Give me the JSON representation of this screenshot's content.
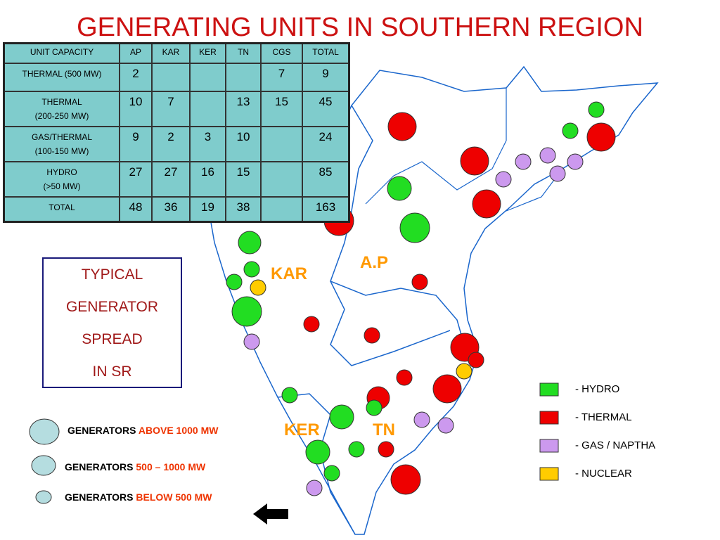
{
  "header": {
    "title": "GENERATING UNITS IN SOUTHERN REGION"
  },
  "table": {
    "columns": [
      "UNIT CAPACITY",
      "AP",
      "KAR",
      "KER",
      "TN",
      "CGS",
      "TOTAL"
    ],
    "rows": [
      {
        "label": [
          "THERMAL (500 MW)"
        ],
        "cells": [
          "2",
          null,
          null,
          null,
          "7",
          "9"
        ]
      },
      {
        "label": [
          "THERMAL",
          "(200-250 MW)"
        ],
        "cells": [
          "10",
          "7",
          null,
          "13",
          "15",
          "45"
        ]
      },
      {
        "label": [
          "GAS/THERMAL",
          "(100-150 MW)"
        ],
        "cells": [
          "9",
          "2",
          "3",
          "10",
          null,
          "24"
        ]
      },
      {
        "label": [
          "HYDRO",
          "(>50 MW)"
        ],
        "cells": [
          "27",
          "27",
          "16",
          "15",
          null,
          "85"
        ]
      },
      {
        "label": [
          "TOTAL"
        ],
        "cells": [
          "48",
          "36",
          "19",
          "38",
          null,
          "163"
        ]
      }
    ]
  },
  "box": {
    "lines": [
      "TYPICAL",
      "GENERATOR",
      "SPREAD",
      "IN  SR"
    ]
  },
  "size_legend": [
    {
      "prefix": "GENERATORS",
      "highlight": "ABOVE 1000 MW"
    },
    {
      "prefix": "GENERATORS",
      "highlight": "500 – 1000 MW"
    },
    {
      "prefix": "GENERATORS",
      "highlight": "BELOW 500 MW"
    }
  ],
  "type_legend": [
    {
      "label": "-  HYDRO",
      "color": "#22dd22"
    },
    {
      "label": "-  THERMAL",
      "color": "#ee0000"
    },
    {
      "label": "-  GAS / NAPTHA",
      "color": "#cc99ee"
    },
    {
      "label": "-  NUCLEAR",
      "color": "#ffcc00"
    }
  ],
  "map_labels": [
    "A.P",
    "KAR",
    "KER",
    "TN"
  ]
}
